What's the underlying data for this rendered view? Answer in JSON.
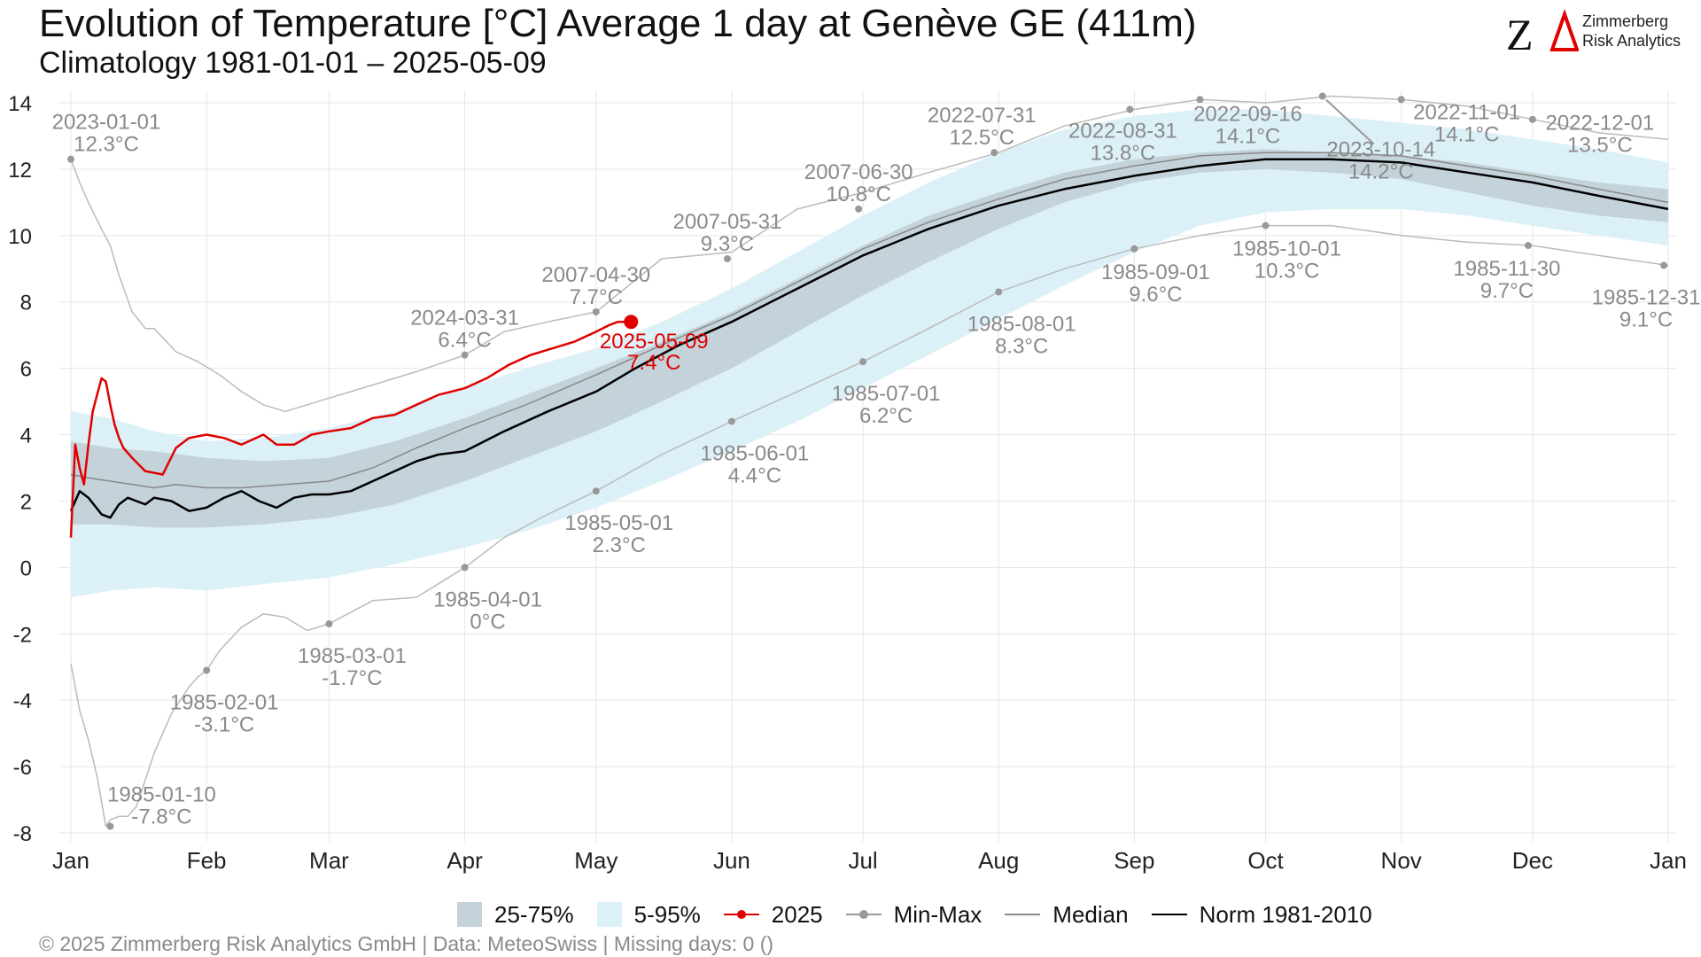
{
  "header": {
    "title": "Evolution of Temperature [°C] Average 1 day at Genève  GE (411m)",
    "subtitle": "Climatology 1981-01-01 – 2025-05-09"
  },
  "logo": {
    "mark": "ZΔ",
    "line1": "Zimmerberg",
    "line2": "Risk Analytics"
  },
  "footer": "©  2025 Zimmerberg Risk Analytics GmbH | Data: MeteoSwiss | Missing days: 0 ()",
  "legend": [
    {
      "label": "25-75%",
      "color": "#c4d3da",
      "kind": "fill"
    },
    {
      "label": "5-95%",
      "color": "#dcf0f8",
      "kind": "fill"
    },
    {
      "label": "2025",
      "color": "#e00000",
      "kind": "line-dot"
    },
    {
      "label": "Min-Max",
      "color": "#999999",
      "kind": "line-dot"
    },
    {
      "label": "Median",
      "color": "#888888",
      "kind": "line"
    },
    {
      "label": "Norm 1981-2010",
      "color": "#000000",
      "kind": "line"
    }
  ],
  "chart_data": {
    "type": "line",
    "x_unit": "day of year",
    "x_ticks": [
      {
        "day": 1,
        "label": "Jan"
      },
      {
        "day": 32,
        "label": "Feb"
      },
      {
        "day": 60,
        "label": "Mar"
      },
      {
        "day": 91,
        "label": "Apr"
      },
      {
        "day": 121,
        "label": "May"
      },
      {
        "day": 152,
        "label": "Jun"
      },
      {
        "day": 182,
        "label": "Jul"
      },
      {
        "day": 213,
        "label": "Aug"
      },
      {
        "day": 244,
        "label": "Sep"
      },
      {
        "day": 274,
        "label": "Oct"
      },
      {
        "day": 305,
        "label": "Nov"
      },
      {
        "day": 335,
        "label": "Dec"
      },
      {
        "day": 366,
        "label": "Jan"
      }
    ],
    "xlim": [
      1,
      366
    ],
    "ylim": [
      -8,
      14
    ],
    "y_ticks": [
      -8,
      -6,
      -4,
      -2,
      0,
      2,
      4,
      6,
      8,
      10,
      12,
      14
    ],
    "grid": true,
    "legend_position": "bottom",
    "colors": {
      "band_25_75": "#c4d3da",
      "band_5_95": "#dcf0f8",
      "year": "#e00000",
      "minmax": "#bbbbbb",
      "minmax_label": "#8a8a8a",
      "median": "#888888",
      "norm": "#000000"
    },
    "band_5_95": {
      "x": [
        1,
        10,
        20,
        32,
        45,
        60,
        75,
        91,
        105,
        121,
        136,
        152,
        167,
        182,
        197,
        213,
        228,
        244,
        259,
        274,
        289,
        305,
        320,
        335,
        350,
        366
      ],
      "lower": [
        -0.9,
        -0.7,
        -0.6,
        -0.7,
        -0.5,
        -0.3,
        0.1,
        0.6,
        1.1,
        1.8,
        2.6,
        3.5,
        4.4,
        5.4,
        6.4,
        7.5,
        8.5,
        9.5,
        10.3,
        10.7,
        10.8,
        10.8,
        10.6,
        10.3,
        10.0,
        9.7
      ],
      "upper": [
        4.7,
        4.5,
        4.1,
        3.8,
        3.9,
        4.2,
        4.7,
        5.4,
        6.0,
        6.6,
        7.4,
        8.4,
        9.5,
        10.6,
        11.6,
        12.5,
        13.2,
        13.6,
        13.8,
        13.8,
        13.6,
        13.4,
        13.2,
        12.9,
        12.6,
        12.2
      ]
    },
    "band_25_75": {
      "x": [
        1,
        10,
        20,
        32,
        45,
        60,
        75,
        91,
        105,
        121,
        136,
        152,
        167,
        182,
        197,
        213,
        228,
        244,
        259,
        274,
        289,
        305,
        320,
        335,
        350,
        366
      ],
      "lower": [
        1.3,
        1.3,
        1.2,
        1.2,
        1.3,
        1.5,
        1.9,
        2.6,
        3.3,
        4.1,
        5.0,
        6.0,
        7.1,
        8.2,
        9.2,
        10.2,
        11.0,
        11.6,
        11.9,
        12.0,
        11.9,
        11.7,
        11.3,
        10.9,
        10.6,
        10.4
      ],
      "upper": [
        3.8,
        3.6,
        3.5,
        3.3,
        3.2,
        3.3,
        3.8,
        4.5,
        5.2,
        6.0,
        6.8,
        7.7,
        8.7,
        9.7,
        10.6,
        11.3,
        11.9,
        12.3,
        12.5,
        12.6,
        12.5,
        12.4,
        12.2,
        11.9,
        11.6,
        11.4
      ]
    },
    "series": [
      {
        "name": "2025",
        "x": [
          1,
          2,
          3,
          4,
          5,
          6,
          7,
          8,
          9,
          10,
          11,
          12,
          13,
          15,
          18,
          22,
          25,
          28,
          32,
          36,
          40,
          45,
          48,
          52,
          56,
          60,
          65,
          70,
          75,
          80,
          85,
          91,
          96,
          101,
          106,
          111,
          116,
          121,
          124,
          126,
          129
        ],
        "y": [
          0.9,
          3.7,
          3.0,
          2.5,
          3.7,
          4.7,
          5.2,
          5.7,
          5.6,
          4.9,
          4.3,
          3.9,
          3.6,
          3.3,
          2.9,
          2.8,
          3.6,
          3.9,
          4.0,
          3.9,
          3.7,
          4.0,
          3.7,
          3.7,
          4.0,
          4.1,
          4.2,
          4.5,
          4.6,
          4.9,
          5.2,
          5.4,
          5.7,
          6.1,
          6.4,
          6.6,
          6.8,
          7.1,
          7.3,
          7.4,
          7.4
        ]
      },
      {
        "name": "Median",
        "x": [
          1,
          5,
          10,
          15,
          20,
          25,
          32,
          40,
          50,
          60,
          70,
          80,
          91,
          105,
          121,
          136,
          152,
          167,
          182,
          197,
          213,
          228,
          244,
          259,
          274,
          289,
          305,
          320,
          335,
          350,
          366
        ],
        "y": [
          2.8,
          2.7,
          2.6,
          2.5,
          2.4,
          2.5,
          2.4,
          2.4,
          2.5,
          2.6,
          3.0,
          3.6,
          4.2,
          4.9,
          5.8,
          6.7,
          7.6,
          8.6,
          9.6,
          10.4,
          11.1,
          11.7,
          12.1,
          12.4,
          12.5,
          12.5,
          12.4,
          12.1,
          11.8,
          11.4,
          11.0
        ]
      },
      {
        "name": "Norm 1981-2010",
        "x": [
          1,
          3,
          5,
          8,
          10,
          12,
          14,
          16,
          18,
          20,
          24,
          28,
          32,
          36,
          40,
          44,
          48,
          52,
          56,
          60,
          65,
          70,
          75,
          80,
          85,
          91,
          100,
          110,
          121,
          130,
          140,
          152,
          167,
          182,
          197,
          213,
          228,
          244,
          259,
          274,
          289,
          305,
          320,
          335,
          350,
          366
        ],
        "y": [
          1.7,
          2.3,
          2.1,
          1.6,
          1.5,
          1.9,
          2.1,
          2.0,
          1.9,
          2.1,
          2.0,
          1.7,
          1.8,
          2.1,
          2.3,
          2.0,
          1.8,
          2.1,
          2.2,
          2.2,
          2.3,
          2.6,
          2.9,
          3.2,
          3.4,
          3.5,
          4.1,
          4.7,
          5.3,
          6.0,
          6.7,
          7.4,
          8.4,
          9.4,
          10.2,
          10.9,
          11.4,
          11.8,
          12.1,
          12.3,
          12.3,
          12.2,
          11.9,
          11.6,
          11.2,
          10.8
        ]
      },
      {
        "name": "Max",
        "x": [
          1,
          3,
          5,
          8,
          10,
          12,
          15,
          18,
          20,
          25,
          30,
          35,
          40,
          45,
          50,
          55,
          60,
          70,
          80,
          91,
          100,
          110,
          121,
          136,
          152,
          167,
          182,
          197,
          213,
          228,
          244,
          259,
          274,
          289,
          305,
          320,
          335,
          350,
          366
        ],
        "y": [
          12.3,
          11.6,
          11.0,
          10.2,
          9.7,
          8.8,
          7.7,
          7.2,
          7.2,
          6.5,
          6.2,
          5.8,
          5.3,
          4.9,
          4.7,
          4.9,
          5.1,
          5.5,
          5.9,
          6.4,
          7.1,
          7.4,
          7.7,
          9.3,
          9.5,
          10.8,
          11.3,
          11.9,
          12.5,
          13.3,
          13.8,
          14.1,
          14.0,
          14.2,
          14.1,
          13.9,
          13.5,
          13.1,
          12.9
        ]
      },
      {
        "name": "Min",
        "x": [
          1,
          3,
          5,
          7,
          9,
          10,
          12,
          14,
          16,
          18,
          20,
          22,
          24,
          26,
          28,
          30,
          32,
          35,
          40,
          45,
          50,
          55,
          60,
          70,
          80,
          91,
          100,
          110,
          121,
          136,
          152,
          167,
          182,
          197,
          213,
          228,
          244,
          259,
          274,
          289,
          305,
          320,
          335,
          350,
          366
        ],
        "y": [
          -2.9,
          -4.3,
          -5.2,
          -6.3,
          -7.8,
          -7.6,
          -7.5,
          -7.5,
          -7.2,
          -6.4,
          -5.6,
          -5.0,
          -4.4,
          -4.0,
          -3.6,
          -3.3,
          -3.1,
          -2.5,
          -1.8,
          -1.4,
          -1.5,
          -1.9,
          -1.7,
          -1.0,
          -0.9,
          0.0,
          0.9,
          1.6,
          2.3,
          3.4,
          4.4,
          5.3,
          6.2,
          7.2,
          8.3,
          9.0,
          9.6,
          10.0,
          10.3,
          10.3,
          10.0,
          9.8,
          9.7,
          9.4,
          9.1
        ]
      }
    ],
    "current_point": {
      "day": 129,
      "value": 7.4,
      "date": "2025-05-09",
      "label": "7.4°C"
    },
    "annotations": [
      {
        "day": 1,
        "value": 12.3,
        "date": "2023-01-01",
        "text": "12.3°C",
        "kind": "max"
      },
      {
        "day": 91,
        "value": 6.4,
        "date": "2024-03-31",
        "text": "6.4°C",
        "kind": "max"
      },
      {
        "day": 121,
        "value": 7.7,
        "date": "2007-04-30",
        "text": "7.7°C",
        "kind": "max"
      },
      {
        "day": 151,
        "value": 9.3,
        "date": "2007-05-31",
        "text": "9.3°C",
        "kind": "max"
      },
      {
        "day": 181,
        "value": 10.8,
        "date": "2007-06-30",
        "text": "10.8°C",
        "kind": "max"
      },
      {
        "day": 212,
        "value": 12.5,
        "date": "2022-07-31",
        "text": "12.5°C",
        "kind": "max"
      },
      {
        "day": 243,
        "value": 13.8,
        "date": "2022-08-31",
        "text": "13.8°C",
        "kind": "max"
      },
      {
        "day": 259,
        "value": 14.1,
        "date": "2022-09-16",
        "text": "14.1°C",
        "kind": "max"
      },
      {
        "day": 287,
        "value": 14.2,
        "date": "2023-10-14",
        "text": "14.2°C",
        "kind": "max"
      },
      {
        "day": 305,
        "value": 14.1,
        "date": "2022-11-01",
        "text": "14.1°C",
        "kind": "max"
      },
      {
        "day": 335,
        "value": 13.5,
        "date": "2022-12-01",
        "text": "13.5°C",
        "kind": "max"
      },
      {
        "day": 10,
        "value": -7.8,
        "date": "1985-01-10",
        "text": "-7.8°C",
        "kind": "min"
      },
      {
        "day": 32,
        "value": -3.1,
        "date": "1985-02-01",
        "text": "-3.1°C",
        "kind": "min"
      },
      {
        "day": 60,
        "value": -1.7,
        "date": "1985-03-01",
        "text": "-1.7°C",
        "kind": "min"
      },
      {
        "day": 91,
        "value": 0,
        "date": "1985-04-01",
        "text": "0°C",
        "kind": "min"
      },
      {
        "day": 121,
        "value": 2.3,
        "date": "1985-05-01",
        "text": "2.3°C",
        "kind": "min"
      },
      {
        "day": 152,
        "value": 4.4,
        "date": "1985-06-01",
        "text": "4.4°C",
        "kind": "min"
      },
      {
        "day": 182,
        "value": 6.2,
        "date": "1985-07-01",
        "text": "6.2°C",
        "kind": "min"
      },
      {
        "day": 213,
        "value": 8.3,
        "date": "1985-08-01",
        "text": "8.3°C",
        "kind": "min"
      },
      {
        "day": 244,
        "value": 9.6,
        "date": "1985-09-01",
        "text": "9.6°C",
        "kind": "min"
      },
      {
        "day": 274,
        "value": 10.3,
        "date": "1985-10-01",
        "text": "10.3°C",
        "kind": "min"
      },
      {
        "day": 334,
        "value": 9.7,
        "date": "1985-11-30",
        "text": "9.7°C",
        "kind": "min"
      },
      {
        "day": 365,
        "value": 9.1,
        "date": "1985-12-31",
        "text": "9.1°C",
        "kind": "min"
      }
    ]
  }
}
